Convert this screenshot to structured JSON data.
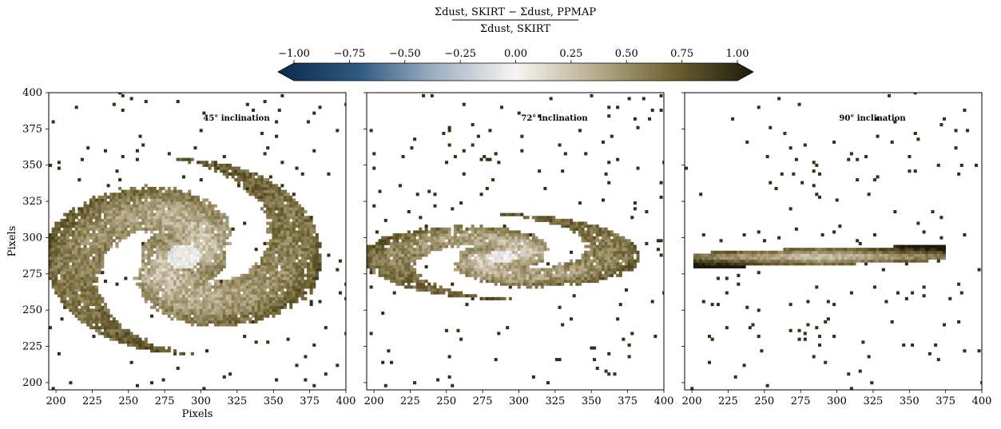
{
  "colorbar": {
    "label_numerator": "Σdust, SKIRT − Σdust, PPMAP",
    "label_denominator": "Σdust, SKIRT",
    "ticks": [
      "−1.00",
      "−0.75",
      "−0.50",
      "−0.25",
      "0.00",
      "0.25",
      "0.50",
      "0.75",
      "1.00"
    ],
    "range": [
      -1.0,
      1.0
    ],
    "colors": [
      "#0b2a4a",
      "#2f5a80",
      "#9db0c2",
      "#f7f5f2",
      "#b7ab8c",
      "#6e6232",
      "#1c1a0c"
    ]
  },
  "chart_data": [
    {
      "type": "heatmap",
      "title": "45° inclination",
      "xlabel": "Pixels",
      "ylabel": "Pixels",
      "xlim": [
        195,
        400
      ],
      "ylim": [
        195,
        400
      ],
      "xticks": [
        "200",
        "225",
        "250",
        "275",
        "300",
        "325",
        "350",
        "375",
        "400"
      ],
      "yticks": [
        "200",
        "225",
        "250",
        "275",
        "300",
        "325",
        "350",
        "375",
        "400"
      ],
      "inclination_deg": 45
    },
    {
      "type": "heatmap",
      "title": "72° inclination",
      "xlabel": "",
      "ylabel": "",
      "xlim": [
        195,
        400
      ],
      "ylim": [
        195,
        400
      ],
      "xticks": [
        "200",
        "225",
        "250",
        "275",
        "300",
        "325",
        "350",
        "375",
        "400"
      ],
      "yticks": [],
      "inclination_deg": 72
    },
    {
      "type": "heatmap",
      "title": "90° inclination",
      "xlabel": "",
      "ylabel": "",
      "xlim": [
        195,
        400
      ],
      "ylim": [
        195,
        400
      ],
      "xticks": [
        "200",
        "225",
        "250",
        "275",
        "300",
        "325",
        "350",
        "375",
        "400"
      ],
      "yticks": [],
      "inclination_deg": 90
    }
  ]
}
